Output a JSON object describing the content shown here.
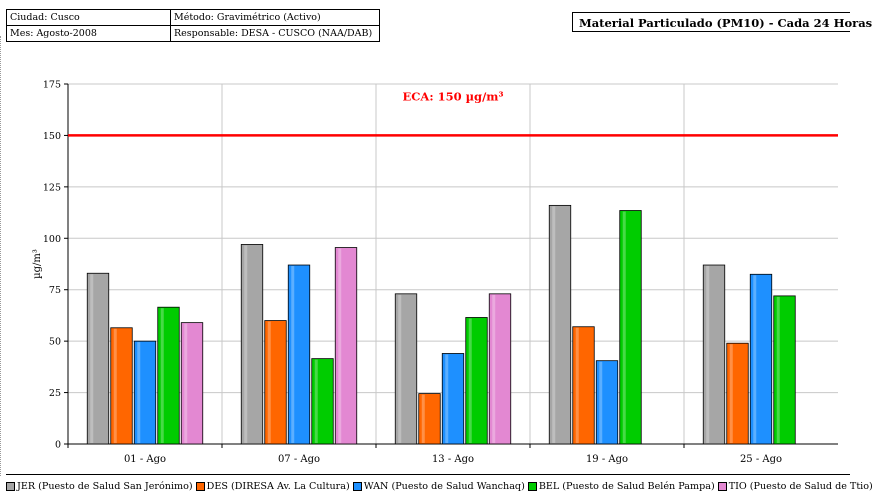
{
  "header": {
    "city": "Ciudad: Cusco",
    "month": "Mes: Agosto-2008",
    "method": "Método: Gravimétrico (Activo)",
    "responsible": "Responsable: DESA - CUSCO (NAA/DAB)",
    "title": "Material Particulado (PM10) - Cada 24 Horas"
  },
  "chart_data": {
    "type": "bar",
    "title": "Material Particulado (PM10) - Cada 24 Horas",
    "xlabel": "",
    "ylabel": "µg/m³",
    "ylim": [
      0,
      175
    ],
    "yticks": [
      "0",
      "25",
      "50",
      "75",
      "100",
      "125",
      "150",
      "175"
    ],
    "categories": [
      "01 - Ago",
      "07 - Ago",
      "13 - Ago",
      "19 - Ago",
      "25 - Ago"
    ],
    "grid": true,
    "legend_position": "bottom",
    "series": [
      {
        "name": "JER (Puesto de Salud San Jerónimo)",
        "color": "#a6a6a6",
        "values": [
          83,
          97,
          73,
          116,
          87
        ]
      },
      {
        "name": "DES (DIRESA Av. La Cultura)",
        "color": "#ff6600",
        "values": [
          56.5,
          60,
          24.5,
          57,
          49
        ]
      },
      {
        "name": "WAN (Puesto de Salud Wanchaq)",
        "color": "#1e90ff",
        "values": [
          50,
          87,
          44,
          40.5,
          82.5
        ]
      },
      {
        "name": "BEL (Puesto de Salud Belén Pampa)",
        "color": "#00cc00",
        "values": [
          66.5,
          41.5,
          61.5,
          113.5,
          72
        ]
      },
      {
        "name": "TIO (Puesto de Salud de Ttio)",
        "color": "#e388d2",
        "values": [
          59,
          95.5,
          73,
          null,
          null
        ]
      }
    ],
    "reference_line": {
      "value": 150,
      "label": "ECA: 150 µg/m³",
      "color": "#ff0000"
    }
  }
}
